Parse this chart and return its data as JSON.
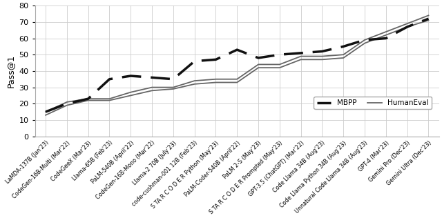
{
  "categories": [
    "LaMDA-137B (Jan'23)",
    "CodeGen-16B-Multi (Mar'22)",
    "CodeGeeX (Mar'23)",
    "Llama-65B (Feb'23)",
    "PaLM-540B (April'22)",
    "CodeGen-16B-Mono (Mar'22)",
    "Llama-2 70B (July'23)",
    "code-cushman-001 12B (Feb'23)",
    "S TA R C O D E R Python (May'23)",
    "PaLM-Coder-540B (April'22)",
    "PaLM 2-S (May'23)",
    "S TA R C O D E R Prompted (May'23)",
    "GPT-3.5 (ChatGPT) (Mar'22)",
    "Code Llama 34B (Aug'23)",
    "Code Llama Python 34B (Aug'23)",
    "Unnatural Code Llama 34B (Aug'23)",
    "GPT-4 (Mar'23)",
    "Gemini Pro (Dec'23)",
    "Gemini Ultra (Dec'23)"
  ],
  "mbpp": [
    15,
    20,
    23,
    35,
    37,
    36,
    35,
    46,
    47,
    53,
    48,
    50,
    51,
    52,
    55,
    59,
    60,
    67,
    72
  ],
  "humaneval_line1": [
    13,
    19,
    22,
    22,
    25,
    28,
    29,
    32,
    33,
    33,
    42,
    42,
    47,
    47,
    48,
    57,
    62,
    67,
    71
  ],
  "humaneval_line2": [
    15,
    21,
    23,
    23,
    27,
    30,
    30,
    34,
    35,
    35,
    44,
    44,
    49,
    49,
    50,
    59,
    64,
    69,
    74
  ],
  "ylabel": "Pass@1",
  "ylim": [
    0,
    80
  ],
  "yticks": [
    0,
    10,
    20,
    30,
    40,
    50,
    60,
    70,
    80
  ],
  "mbpp_color": "#111111",
  "humaneval_color": "#666666",
  "legend_mbpp": "MBPP",
  "legend_humaneval": "HumanEval",
  "bg_color": "#ffffff",
  "grid_color": "#cccccc"
}
